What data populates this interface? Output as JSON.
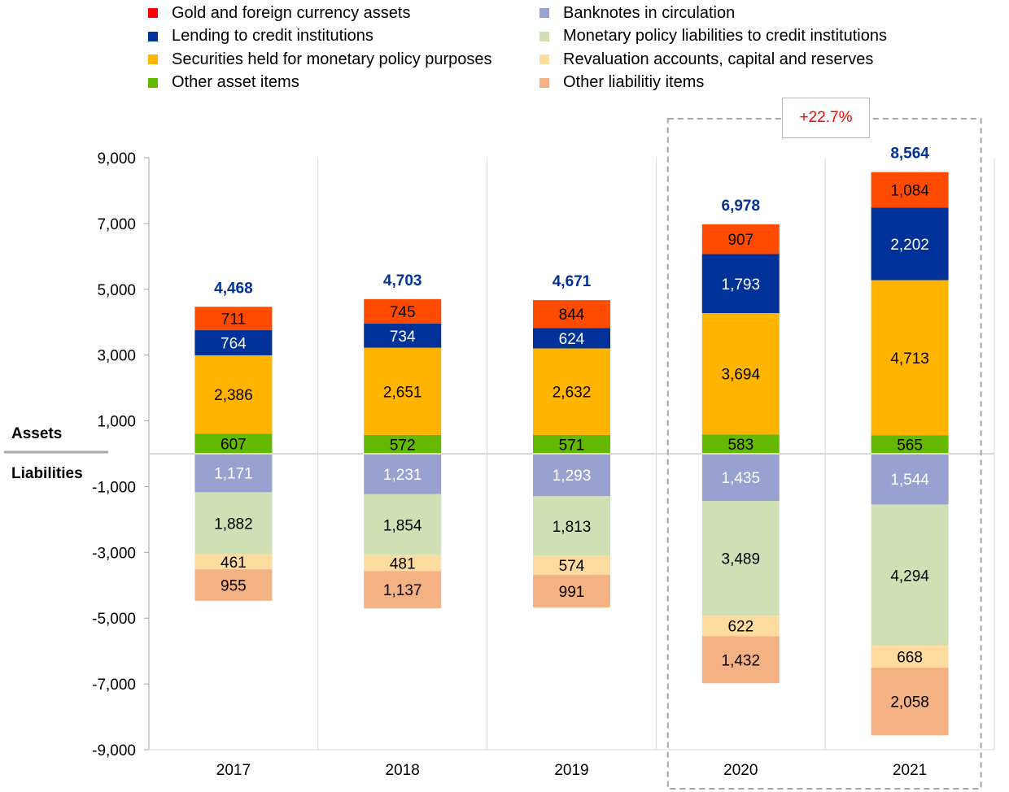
{
  "chart_data": {
    "type": "bar",
    "stacked": true,
    "categories": [
      "2017",
      "2018",
      "2019",
      "2020",
      "2021"
    ],
    "ylim": [
      -9000,
      9000
    ],
    "yticks": [
      9000,
      7000,
      5000,
      3000,
      1000,
      -1000,
      -3000,
      -5000,
      -7000,
      -9000
    ],
    "ytick_labels": [
      "9,000",
      "7,000",
      "5,000",
      "3,000",
      "1,000",
      "-1,000",
      "-3,000",
      "-5,000",
      "-7,000",
      "-9,000"
    ],
    "side_labels": {
      "assets": "Assets",
      "liabilities": "Liabilities"
    },
    "totals": [
      4468,
      4703,
      4671,
      6978,
      8564
    ],
    "total_labels": [
      "4,468",
      "4,703",
      "4,671",
      "6,978",
      "8,564"
    ],
    "total_color": "#003299",
    "highlight": {
      "label": "+22.7%",
      "color": "#ff0000",
      "categories": [
        "2020",
        "2021"
      ]
    },
    "legend_left": [
      {
        "name": "Gold and foreign currency assets",
        "color": "#ff0000"
      },
      {
        "name": "Lending to credit institutions",
        "color": "#003299"
      },
      {
        "name": "Securities held for monetary policy purposes",
        "color": "#ffb400"
      },
      {
        "name": "Other asset items",
        "color": "#65b800"
      }
    ],
    "legend_right": [
      {
        "name": "Banknotes in circulation",
        "color": "#98a1d0"
      },
      {
        "name": "Monetary policy liabilities to credit institutions",
        "color": "#d1e0b4"
      },
      {
        "name": "Revaluation accounts, capital and reserves",
        "color": "#fedc9f"
      },
      {
        "name": "Other liabilitiy items",
        "color": "#f4b183"
      }
    ],
    "asset_series": [
      {
        "name": "Other asset items",
        "color": "#65b800",
        "text_color": "#000000",
        "values": [
          607,
          572,
          571,
          583,
          565
        ],
        "labels": [
          "607",
          "572",
          "571",
          "583",
          "565"
        ]
      },
      {
        "name": "Securities held for monetary policy purposes",
        "color": "#ffb400",
        "text_color": "#000000",
        "values": [
          2386,
          2651,
          2632,
          3694,
          4713
        ],
        "labels": [
          "2,386",
          "2,651",
          "2,632",
          "3,694",
          "4,713"
        ]
      },
      {
        "name": "Lending to credit institutions",
        "color": "#003299",
        "text_color": "#ffffff",
        "values": [
          764,
          734,
          624,
          1793,
          2202
        ],
        "labels": [
          "764",
          "734",
          "624",
          "1,793",
          "2,202"
        ]
      },
      {
        "name": "Gold and foreign currency assets",
        "color": "#ff4b00",
        "text_color": "#000000",
        "values": [
          711,
          745,
          844,
          907,
          1084
        ],
        "labels": [
          "711",
          "745",
          "844",
          "907",
          "1,084"
        ]
      }
    ],
    "liability_series": [
      {
        "name": "Banknotes in circulation",
        "color": "#98a1d0",
        "text_color": "#ffffff",
        "values": [
          1171,
          1231,
          1293,
          1435,
          1544
        ],
        "labels": [
          "1,171",
          "1,231",
          "1,293",
          "1,435",
          "1,544"
        ]
      },
      {
        "name": "Monetary policy liabilities to credit institutions",
        "color": "#d1e0b4",
        "text_color": "#000000",
        "values": [
          1882,
          1854,
          1813,
          3489,
          4294
        ],
        "labels": [
          "1,882",
          "1,854",
          "1,813",
          "3,489",
          "4,294"
        ]
      },
      {
        "name": "Revaluation accounts, capital and reserves",
        "color": "#fedc9f",
        "text_color": "#000000",
        "values": [
          461,
          481,
          574,
          622,
          668
        ],
        "labels": [
          "461",
          "481",
          "574",
          "622",
          "668"
        ]
      },
      {
        "name": "Other liabilitiy items",
        "color": "#f4b183",
        "text_color": "#000000",
        "values": [
          955,
          1137,
          991,
          1432,
          2058
        ],
        "labels": [
          "955",
          "1,137",
          "991",
          "1,432",
          "2,058"
        ]
      }
    ]
  }
}
